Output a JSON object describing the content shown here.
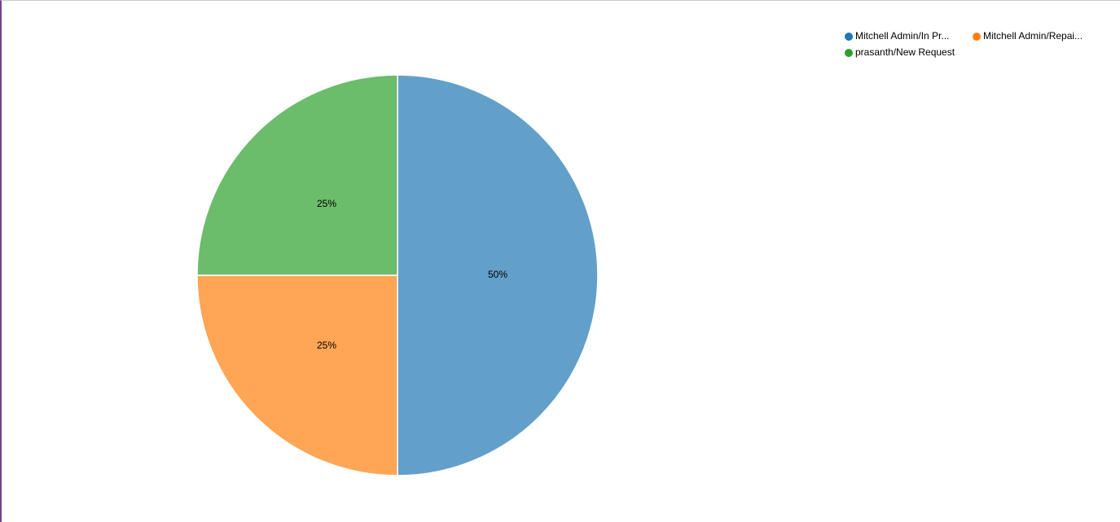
{
  "chart_data": {
    "type": "pie",
    "categories": [
      "Mitchell Admin/In Pr...",
      "Mitchell Admin/Repai...",
      "prasanth/New Request"
    ],
    "values": [
      50,
      25,
      25
    ],
    "value_labels": [
      "50%",
      "25%",
      "25%"
    ],
    "colors": [
      "#1f77b4",
      "#ff7f0e",
      "#2ca02c"
    ],
    "legend": "top-right"
  }
}
